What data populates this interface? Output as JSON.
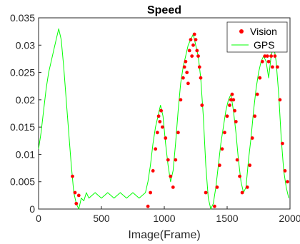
{
  "chart_data": {
    "type": "line",
    "title": "Speed",
    "xlabel": "Image(Frame)",
    "ylabel": "",
    "xlim": [
      0,
      2000
    ],
    "ylim": [
      0,
      0.035
    ],
    "xticks": [
      "0",
      "500",
      "1000",
      "1500",
      "2000"
    ],
    "yticks": [
      "0",
      "0.005",
      "0.01",
      "0.015",
      "0.02",
      "0.025",
      "0.03",
      "0.035"
    ],
    "legend_position": "top-right",
    "colors": {
      "vision": "#ff0000",
      "gps": "#00ff00"
    },
    "series": [
      {
        "name": "GPS",
        "style": "line",
        "x": [
          0,
          20,
          40,
          60,
          80,
          100,
          120,
          140,
          160,
          180,
          200,
          220,
          240,
          260,
          280,
          300,
          320,
          340,
          360,
          380,
          400,
          450,
          500,
          550,
          600,
          650,
          700,
          750,
          800,
          850,
          870,
          890,
          910,
          930,
          950,
          970,
          990,
          1010,
          1030,
          1050,
          1070,
          1090,
          1110,
          1130,
          1150,
          1170,
          1190,
          1210,
          1230,
          1250,
          1270,
          1290,
          1310,
          1330,
          1350,
          1370,
          1390,
          1410,
          1430,
          1450,
          1470,
          1490,
          1510,
          1530,
          1550,
          1570,
          1590,
          1610,
          1630,
          1650,
          1670,
          1690,
          1710,
          1730,
          1750,
          1770,
          1790,
          1810,
          1830,
          1850,
          1870,
          1890,
          1910,
          1930,
          1950,
          1970,
          1990
        ],
        "y": [
          0.011,
          0.014,
          0.018,
          0.022,
          0.025,
          0.027,
          0.029,
          0.031,
          0.033,
          0.031,
          0.026,
          0.02,
          0.014,
          0.008,
          0.003,
          0.001,
          0.0,
          0.002,
          0.0015,
          0.003,
          0.002,
          0.003,
          0.002,
          0.003,
          0.002,
          0.003,
          0.002,
          0.003,
          0.002,
          0.003,
          0.005,
          0.008,
          0.012,
          0.015,
          0.017,
          0.019,
          0.017,
          0.012,
          0.008,
          0.005,
          0.007,
          0.012,
          0.018,
          0.023,
          0.026,
          0.028,
          0.03,
          0.031,
          0.032,
          0.03,
          0.028,
          0.024,
          0.017,
          0.008,
          0.002,
          0.0,
          0.001,
          0.004,
          0.008,
          0.012,
          0.015,
          0.018,
          0.02,
          0.021,
          0.018,
          0.014,
          0.009,
          0.005,
          0.003,
          0.004,
          0.009,
          0.013,
          0.018,
          0.022,
          0.025,
          0.027,
          0.028,
          0.027,
          0.024,
          0.028,
          0.03,
          0.027,
          0.021,
          0.013,
          0.007,
          0.004,
          0.002
        ]
      },
      {
        "name": "Vision",
        "style": "markers",
        "x": [
          270,
          290,
          300,
          320,
          870,
          890,
          910,
          930,
          945,
          955,
          965,
          975,
          985,
          1010,
          1030,
          1050,
          1070,
          1090,
          1110,
          1130,
          1150,
          1160,
          1170,
          1180,
          1190,
          1200,
          1210,
          1220,
          1230,
          1240,
          1250,
          1260,
          1270,
          1280,
          1290,
          1300,
          1330,
          1400,
          1420,
          1440,
          1460,
          1480,
          1500,
          1520,
          1530,
          1540,
          1550,
          1560,
          1570,
          1580,
          1600,
          1620,
          1660,
          1680,
          1700,
          1720,
          1740,
          1760,
          1780,
          1800,
          1810,
          1820,
          1830,
          1840,
          1850,
          1860,
          1870,
          1880,
          1890,
          1900,
          1920,
          1940,
          1960,
          1980
        ],
        "y": [
          0.006,
          0.003,
          0.001,
          0.0025,
          0.0005,
          0.003,
          0.007,
          0.011,
          0.014,
          0.017,
          0.016,
          0.018,
          0.015,
          0.013,
          0.009,
          0.006,
          0.004,
          0.009,
          0.014,
          0.02,
          0.024,
          0.026,
          0.027,
          0.025,
          0.023,
          0.029,
          0.031,
          0.028,
          0.03,
          0.032,
          0.031,
          0.029,
          0.028,
          0.026,
          0.024,
          0.019,
          0.003,
          0.0005,
          0.004,
          0.008,
          0.011,
          0.014,
          0.017,
          0.019,
          0.02,
          0.021,
          0.02,
          0.018,
          0.016,
          0.009,
          0.006,
          0.003,
          0.004,
          0.008,
          0.013,
          0.017,
          0.021,
          0.024,
          0.027,
          0.028,
          0.029,
          0.028,
          0.027,
          0.029,
          0.028,
          0.026,
          0.029,
          0.028,
          0.03,
          0.026,
          0.02,
          0.012,
          0.007,
          0.005
        ]
      }
    ]
  }
}
